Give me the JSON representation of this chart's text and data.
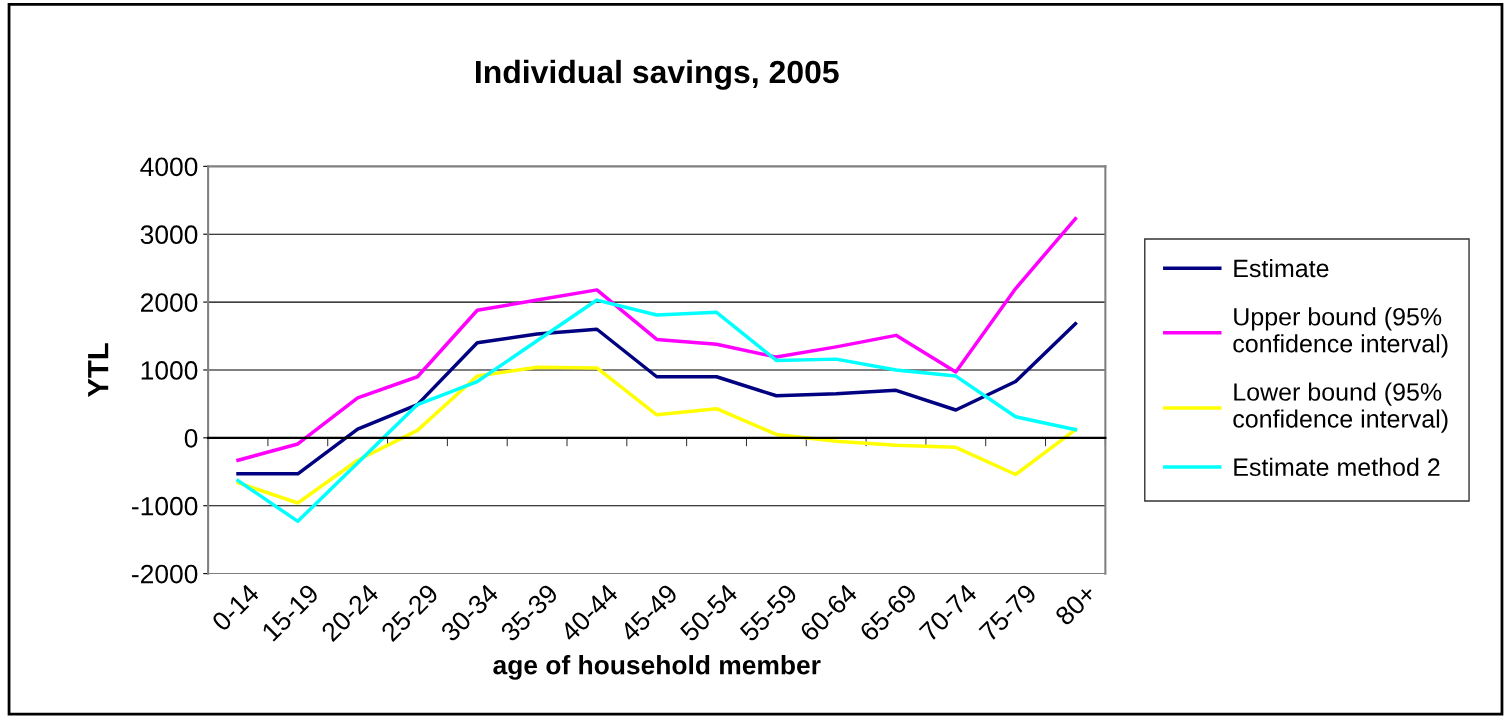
{
  "chart_data": {
    "type": "line",
    "title": "Individual savings, 2005",
    "xlabel": "age of household member",
    "ylabel": "YTL",
    "categories": [
      "0-14",
      "15-19",
      "20-24",
      "25-29",
      "30-34",
      "35-39",
      "40-44",
      "45-49",
      "50-54",
      "55-59",
      "60-64",
      "65-69",
      "70-74",
      "75-79",
      "80+"
    ],
    "series": [
      {
        "name": "Estimate",
        "color": "#000080",
        "values": [
          -530,
          -530,
          130,
          490,
          1400,
          1530,
          1600,
          900,
          900,
          620,
          650,
          700,
          410,
          830,
          1680
        ]
      },
      {
        "name": "Upper bound (95% confidence interval)",
        "color": "#ff00ff",
        "values": [
          -330,
          -90,
          590,
          900,
          1880,
          2030,
          2180,
          1450,
          1380,
          1190,
          1340,
          1510,
          970,
          2200,
          3230
        ]
      },
      {
        "name": "Lower bound (95% confidence interval)",
        "color": "#ffff00",
        "values": [
          -660,
          -960,
          -330,
          110,
          910,
          1040,
          1030,
          340,
          430,
          50,
          -50,
          -110,
          -140,
          -540,
          120
        ]
      },
      {
        "name": "Estimate method 2",
        "color": "#00ffff",
        "values": [
          -630,
          -1230,
          -370,
          490,
          830,
          1430,
          2030,
          1810,
          1850,
          1140,
          1160,
          1000,
          910,
          310,
          120
        ]
      }
    ],
    "ylim": [
      -2000,
      4000
    ],
    "yticks": [
      -2000,
      -1000,
      0,
      1000,
      2000,
      3000,
      4000
    ],
    "grid": "y",
    "legend": "right",
    "marker": "none",
    "line_style": "solid"
  }
}
